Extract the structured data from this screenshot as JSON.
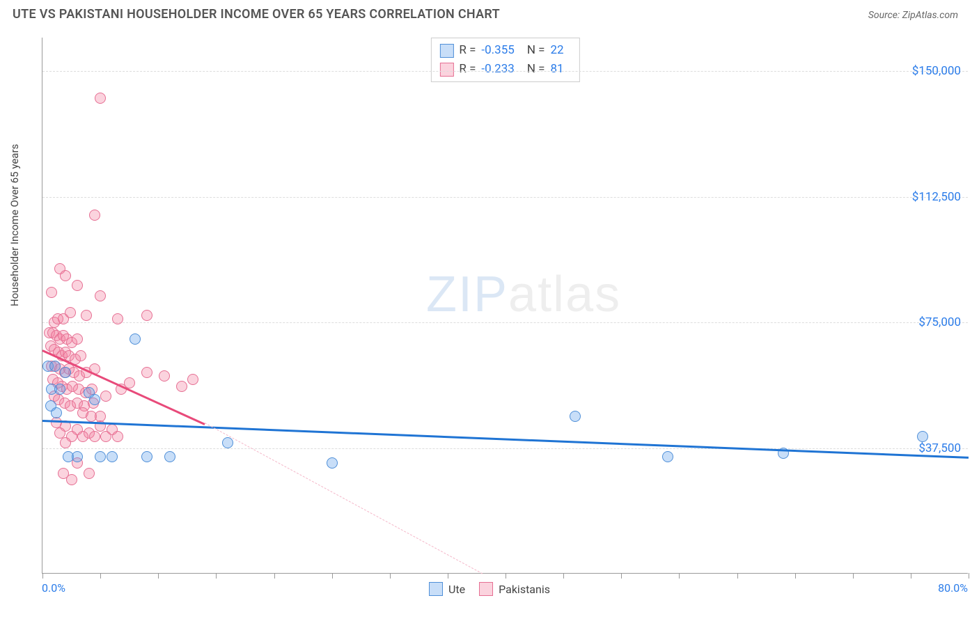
{
  "title": "UTE VS PAKISTANI HOUSEHOLDER INCOME OVER 65 YEARS CORRELATION CHART",
  "source": "Source: ZipAtlas.com",
  "y_axis_label": "Householder Income Over 65 years",
  "watermark": {
    "part1": "ZIP",
    "part2": "atlas"
  },
  "chart": {
    "type": "scatter",
    "background_color": "#ffffff",
    "grid_color": "#dddddd",
    "axis_color": "#999999",
    "xlim": [
      0,
      80
    ],
    "ylim": [
      0,
      160000
    ],
    "x_axis": {
      "start_label": "0.0%",
      "end_label": "80.0%",
      "tick_step": 5
    },
    "y_ticks": [
      {
        "value": 37500,
        "label": "$37,500"
      },
      {
        "value": 75000,
        "label": "$75,000"
      },
      {
        "value": 112500,
        "label": "$112,500"
      },
      {
        "value": 150000,
        "label": "$150,000"
      }
    ],
    "point_radius": 8,
    "point_stroke_width": 1.2,
    "series": [
      {
        "name": "Ute",
        "fill": "rgba(96,160,234,0.35)",
        "stroke": "#4f8fd8",
        "R": "-0.355",
        "N": "22",
        "trend": {
          "x1": 0,
          "y1": 46000,
          "x2": 80,
          "y2": 35000,
          "width": 3,
          "color": "#1f74d4",
          "dash": "solid"
        },
        "points": [
          [
            0.5,
            62000
          ],
          [
            2,
            60000
          ],
          [
            0.8,
            55000
          ],
          [
            1.5,
            55000
          ],
          [
            0.7,
            50000
          ],
          [
            1.2,
            48000
          ],
          [
            2.2,
            35000
          ],
          [
            3,
            35000
          ],
          [
            5,
            35000
          ],
          [
            6,
            35000
          ],
          [
            9,
            35000
          ],
          [
            11,
            35000
          ],
          [
            8,
            70000
          ],
          [
            4,
            54000
          ],
          [
            4.5,
            52000
          ],
          [
            16,
            39000
          ],
          [
            25,
            33000
          ],
          [
            46,
            47000
          ],
          [
            54,
            35000
          ],
          [
            64,
            36000
          ],
          [
            76,
            41000
          ],
          [
            1.1,
            62000
          ]
        ]
      },
      {
        "name": "Pakistanis",
        "fill": "rgba(244,130,160,0.35)",
        "stroke": "#e66f93",
        "R": "-0.233",
        "N": "81",
        "trend": {
          "x1": 0,
          "y1": 67000,
          "x2": 14,
          "y2": 45000,
          "width": 3,
          "color": "#e84a7a",
          "dash": "solid"
        },
        "trend_dash": {
          "x1": 14,
          "y1": 45000,
          "x2": 38,
          "y2": 0,
          "width": 1,
          "color": "#f4b6c8",
          "dash": "dashed"
        },
        "points": [
          [
            5,
            142000
          ],
          [
            4.5,
            107000
          ],
          [
            1.5,
            91000
          ],
          [
            2,
            89000
          ],
          [
            3,
            86000
          ],
          [
            5,
            83000
          ],
          [
            0.8,
            84000
          ],
          [
            1,
            75000
          ],
          [
            1.3,
            76000
          ],
          [
            1.8,
            76000
          ],
          [
            2.4,
            78000
          ],
          [
            3.8,
            77000
          ],
          [
            6.5,
            76000
          ],
          [
            9,
            77000
          ],
          [
            0.6,
            72000
          ],
          [
            0.9,
            72000
          ],
          [
            1.2,
            71000
          ],
          [
            1.5,
            70000
          ],
          [
            1.8,
            71000
          ],
          [
            2.1,
            70000
          ],
          [
            2.5,
            69000
          ],
          [
            3,
            70000
          ],
          [
            0.7,
            68000
          ],
          [
            1,
            67000
          ],
          [
            1.4,
            66000
          ],
          [
            1.7,
            65000
          ],
          [
            2,
            66000
          ],
          [
            2.3,
            65000
          ],
          [
            2.8,
            64000
          ],
          [
            3.3,
            65000
          ],
          [
            0.8,
            62000
          ],
          [
            1.1,
            62000
          ],
          [
            1.5,
            61000
          ],
          [
            1.9,
            60000
          ],
          [
            2.3,
            61000
          ],
          [
            2.7,
            60000
          ],
          [
            3.2,
            59000
          ],
          [
            3.8,
            60000
          ],
          [
            4.5,
            61000
          ],
          [
            0.9,
            58000
          ],
          [
            1.3,
            57000
          ],
          [
            1.7,
            56000
          ],
          [
            2.1,
            55000
          ],
          [
            2.6,
            56000
          ],
          [
            3.1,
            55000
          ],
          [
            3.7,
            54000
          ],
          [
            4.3,
            55000
          ],
          [
            1,
            53000
          ],
          [
            1.4,
            52000
          ],
          [
            1.9,
            51000
          ],
          [
            2.4,
            50000
          ],
          [
            3,
            51000
          ],
          [
            3.6,
            50000
          ],
          [
            4.4,
            51000
          ],
          [
            5.5,
            53000
          ],
          [
            6.8,
            55000
          ],
          [
            7.5,
            57000
          ],
          [
            9,
            60000
          ],
          [
            10.5,
            59000
          ],
          [
            12,
            56000
          ],
          [
            13,
            58000
          ],
          [
            3.5,
            48000
          ],
          [
            4.2,
            47000
          ],
          [
            5,
            47000
          ],
          [
            1.2,
            45000
          ],
          [
            2,
            44000
          ],
          [
            3,
            43000
          ],
          [
            4,
            42000
          ],
          [
            5,
            44000
          ],
          [
            6,
            43000
          ],
          [
            1.5,
            42000
          ],
          [
            2.5,
            41000
          ],
          [
            3.5,
            41000
          ],
          [
            4.5,
            41000
          ],
          [
            5.5,
            41000
          ],
          [
            6.5,
            41000
          ],
          [
            2,
            39000
          ],
          [
            3,
            33000
          ],
          [
            4,
            30000
          ],
          [
            2.5,
            28000
          ],
          [
            1.8,
            30000
          ]
        ]
      }
    ]
  },
  "legend_bottom": [
    {
      "label": "Ute",
      "fill": "rgba(96,160,234,0.35)",
      "stroke": "#4f8fd8"
    },
    {
      "label": "Pakistanis",
      "fill": "rgba(244,130,160,0.35)",
      "stroke": "#e66f93"
    }
  ]
}
